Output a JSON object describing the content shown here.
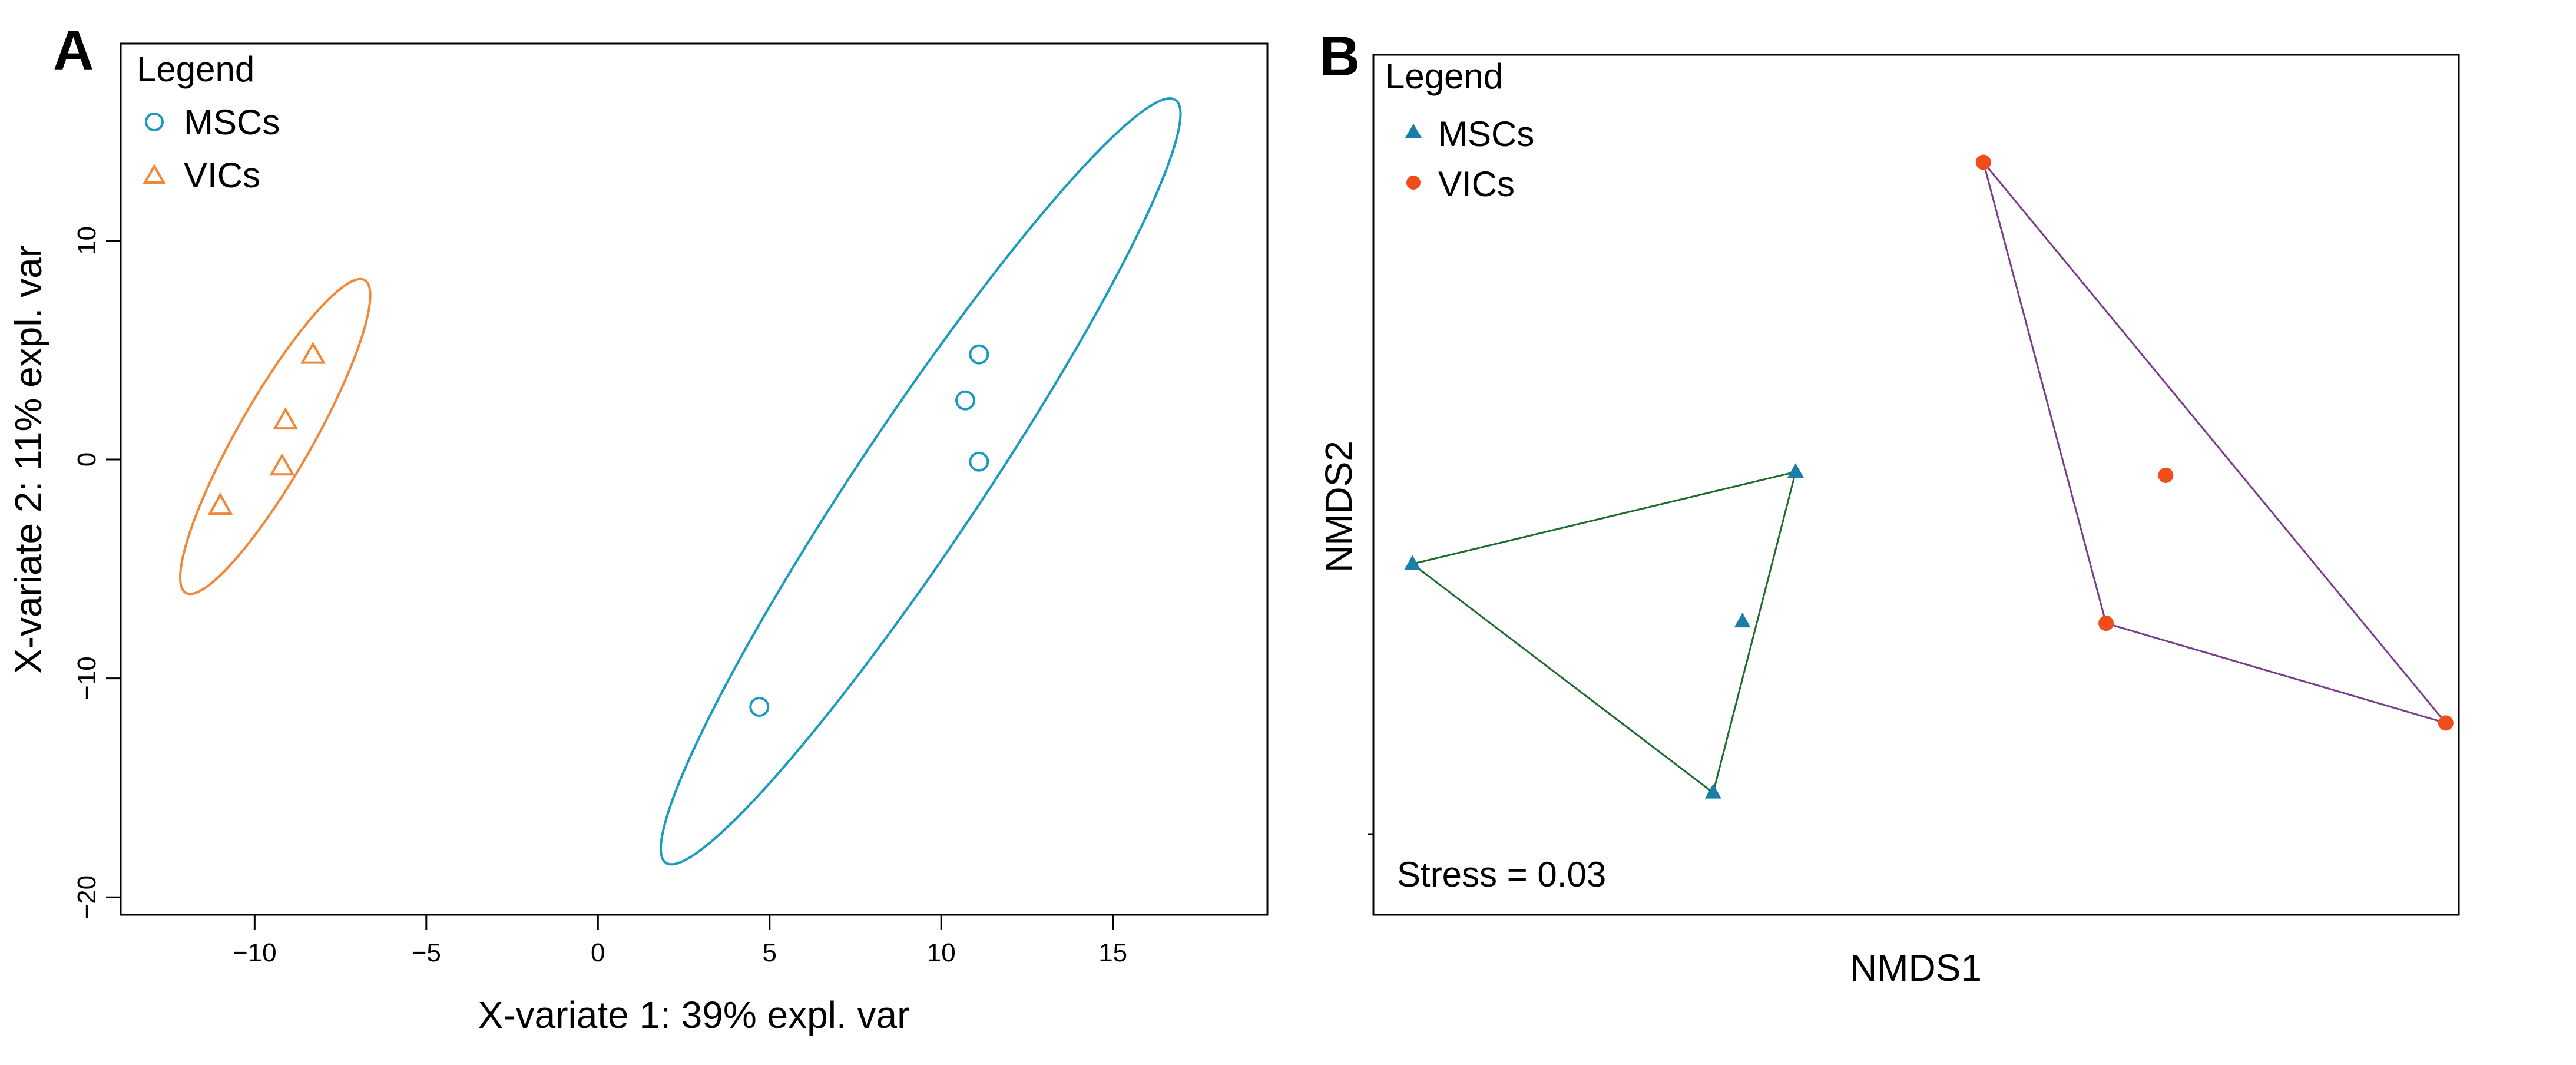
{
  "chart_data": [
    {
      "type": "scatter",
      "panel_label": "A",
      "xlabel": "X-variate 1: 39% expl. var",
      "ylabel": "X-variate 2: 11% expl. var",
      "xlim": [
        -13.9,
        19.5
      ],
      "ylim": [
        -20.8,
        19
      ],
      "xticks": [
        -10,
        -5,
        0,
        5,
        10,
        15
      ],
      "xtick_labels": [
        "−10",
        "−5",
        "0",
        "5",
        "10",
        "15"
      ],
      "yticks": [
        -20,
        -10,
        0,
        10
      ],
      "ytick_labels": [
        "−20",
        "−10",
        "0",
        "10"
      ],
      "legend": {
        "title": "Legend",
        "position": "top-left"
      },
      "series": [
        {
          "name": "MSCs",
          "marker": "open-circle",
          "color": "#1a9bbd",
          "x": [
            11.1,
            10.7,
            11.1,
            4.7
          ],
          "y": [
            4.8,
            2.7,
            -0.1,
            -11.3
          ],
          "ellipse": {
            "center": [
              9.4,
              -1.0
            ],
            "u": [
              7.4,
              17.45
            ],
            "v": [
              1.6,
              -1.3
            ]
          }
        },
        {
          "name": "VICs",
          "marker": "open-triangle",
          "color": "#f0883a",
          "x": [
            -8.3,
            -9.1,
            -9.2,
            -11.0
          ],
          "y": [
            4.8,
            1.8,
            -0.3,
            -2.1
          ],
          "ellipse": {
            "center": [
              -9.4,
              1.05
            ],
            "u": [
              2.6,
              7.15
            ],
            "v": [
              0.95,
              -0.8
            ]
          }
        }
      ]
    },
    {
      "type": "scatter",
      "panel_label": "B",
      "xlabel": "NMDS1",
      "ylabel": "NMDS2",
      "xlim": [
        0,
        100
      ],
      "ylim": [
        0,
        100
      ],
      "annotation": "Stress = 0.03",
      "legend": {
        "title": "Legend",
        "position": "top-left"
      },
      "series": [
        {
          "name": "MSCs",
          "marker": "filled-triangle",
          "color": "#1a7fa8",
          "hull_color": "#1f6b2e",
          "x": [
            3.6,
            38.9,
            34.0,
            31.3
          ],
          "y": [
            40.8,
            51.5,
            34.1,
            14.2
          ],
          "hull": [
            0,
            1,
            3
          ]
        },
        {
          "name": "VICs",
          "marker": "filled-circle",
          "color": "#f04d1b",
          "hull_color": "#7b3b8c",
          "x": [
            56.2,
            73.0,
            67.5,
            98.8
          ],
          "y": [
            87.5,
            51.1,
            33.9,
            22.3
          ],
          "hull": [
            0,
            3,
            2
          ]
        }
      ]
    }
  ]
}
